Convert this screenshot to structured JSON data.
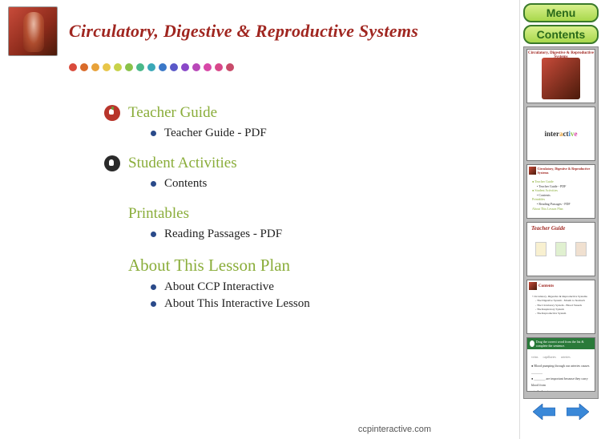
{
  "header": {
    "title": "Circulatory, Digestive & Reproductive Systems",
    "title_color": "#a02620",
    "title_fontsize": 22,
    "dots": [
      "#d94b3c",
      "#d96b2a",
      "#e8a23a",
      "#e8c64a",
      "#c8d24a",
      "#8ac24a",
      "#4ab88a",
      "#3aa8b8",
      "#3a78c8",
      "#5a58c8",
      "#8a48c8",
      "#b848b8",
      "#d848a8",
      "#d8488a",
      "#c84b6a"
    ]
  },
  "sections": [
    {
      "icon": "apple",
      "title": "Teacher Guide",
      "title_color": "#8aad3a",
      "title_fontsize": 19,
      "items": [
        {
          "label": "Teacher Guide - PDF",
          "bullet_color": "#2a4a8a"
        }
      ]
    },
    {
      "icon": "hand",
      "title": "Student Activities",
      "title_color": "#8aad3a",
      "title_fontsize": 19,
      "items": [
        {
          "label": "Contents",
          "bullet_color": "#2a4a8a"
        }
      ]
    },
    {
      "icon": "none",
      "title": "Printables",
      "title_color": "#8aad3a",
      "title_fontsize": 19,
      "items": [
        {
          "label": "Reading Passages - PDF",
          "bullet_color": "#2a4a8a"
        }
      ]
    },
    {
      "icon": "none",
      "title": "About This Lesson Plan",
      "title_color": "#8aad3a",
      "title_fontsize": 21,
      "items": [
        {
          "label": "About CCP Interactive",
          "bullet_color": "#2a4a8a"
        },
        {
          "label": "About This Interactive Lesson",
          "bullet_color": "#2a4a8a"
        }
      ]
    }
  ],
  "item_fontsize": 15,
  "item_color": "#222222",
  "sidebar": {
    "menu_label": "Menu",
    "contents_label": "Contents",
    "btn_border_color": "#3a7a2a",
    "btn_text_color": "#2a6a1a",
    "arrow_color": "#3a88d8",
    "thumbs": [
      {
        "type": "cover",
        "title": "Circulatory, Digestive & Reproductive Systems"
      },
      {
        "type": "interactive",
        "label": "interactive"
      },
      {
        "type": "toc",
        "title": "Circulatory, Digestive & Reproductive Systems"
      },
      {
        "type": "teacher",
        "title": "Teacher Guide"
      },
      {
        "type": "contents2",
        "title": "Contents"
      },
      {
        "type": "worksheet",
        "title": ""
      }
    ]
  },
  "footer": {
    "url": "ccpinteractive.com"
  }
}
